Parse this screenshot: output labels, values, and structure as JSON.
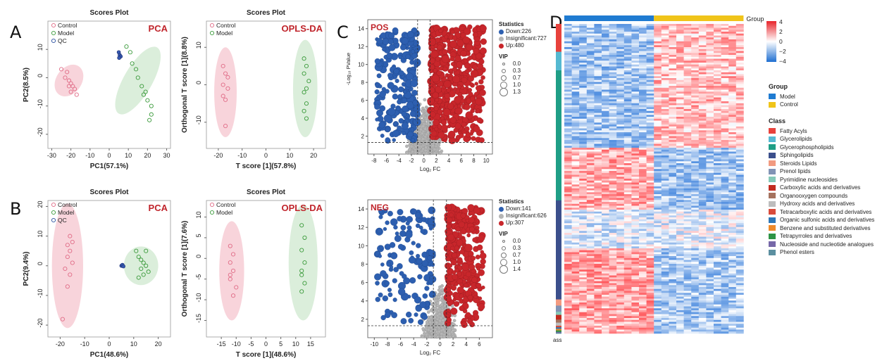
{
  "panel_letters": {
    "a": "A",
    "b": "B",
    "c": "C",
    "d": "D"
  },
  "chart_data": [
    {
      "id": "A_pca",
      "type": "scatter",
      "title": "Scores Plot",
      "tag": "PCA",
      "xlabel": "PC1(57.1%)",
      "ylabel": "PC2(8.5%)",
      "xlim": [
        -32,
        32
      ],
      "ylim": [
        -25,
        20
      ],
      "xticks": [
        -30,
        -20,
        -10,
        0,
        10,
        20,
        30
      ],
      "yticks": [
        -20,
        -10,
        0,
        10
      ],
      "legend": [
        "Control",
        "Model",
        "QC"
      ],
      "series": [
        {
          "name": "Control",
          "color": "#e06b86",
          "fill": "#f5c6cf",
          "points": [
            [
              -25,
              3
            ],
            [
              -22,
              2
            ],
            [
              -23,
              0
            ],
            [
              -21,
              -1
            ],
            [
              -20,
              -2
            ],
            [
              -19,
              -3
            ],
            [
              -18,
              -4
            ],
            [
              -21,
              -3
            ],
            [
              -20,
              -5
            ],
            [
              -17,
              -6
            ]
          ],
          "ellipse": {
            "cx": -21,
            "cy": -1,
            "rx": 9,
            "ry": 4.5,
            "rot": -55
          }
        },
        {
          "name": "Model",
          "color": "#3a9a3a",
          "fill": "#cfe8cf",
          "points": [
            [
              9,
              11
            ],
            [
              11,
              9
            ],
            [
              12,
              5
            ],
            [
              14,
              3
            ],
            [
              15,
              0
            ],
            [
              17,
              -3
            ],
            [
              19,
              -5
            ],
            [
              20,
              -8
            ],
            [
              22,
              -10
            ],
            [
              22,
              -13
            ],
            [
              18,
              -6
            ],
            [
              21,
              -15
            ]
          ],
          "ellipse": {
            "cx": 15,
            "cy": -1,
            "rx": 20,
            "ry": 5,
            "rot": -60
          }
        },
        {
          "name": "QC",
          "color": "#2a4fa0",
          "fill": "none",
          "points": [
            [
              5,
              9
            ],
            [
              5.5,
              8
            ],
            [
              6,
              7.5
            ],
            [
              5.2,
              7
            ]
          ]
        }
      ]
    },
    {
      "id": "A_oplsda",
      "type": "scatter",
      "title": "Scores Plot",
      "tag": "OPLS-DA",
      "xlabel": "T score [1](57.8%)",
      "ylabel": "Orthogonal T score [1](8.8%)",
      "xlim": [
        -25,
        25
      ],
      "ylim": [
        -17,
        17
      ],
      "xticks": [
        -20,
        -10,
        0,
        10,
        20
      ],
      "yticks": [
        -10,
        0,
        10
      ],
      "legend": [
        "Control",
        "Model"
      ],
      "series": [
        {
          "name": "Control",
          "color": "#e06b86",
          "fill": "#f5c6cf",
          "points": [
            [
              -18,
              5
            ],
            [
              -17,
              3
            ],
            [
              -18,
              0
            ],
            [
              -16,
              -1
            ],
            [
              -18,
              -3
            ],
            [
              -17,
              -4
            ],
            [
              -17,
              -11
            ],
            [
              -16,
              2
            ]
          ],
          "ellipse": {
            "cx": -17,
            "cy": -2,
            "rx": 2.5,
            "ry": 12,
            "rot": 0
          }
        },
        {
          "name": "Model",
          "color": "#3a9a3a",
          "fill": "#cfe8cf",
          "points": [
            [
              16,
              7
            ],
            [
              17,
              5
            ],
            [
              16,
              3
            ],
            [
              18,
              1
            ],
            [
              17,
              -1
            ],
            [
              16,
              -2
            ],
            [
              17,
              -5
            ],
            [
              16,
              -7
            ],
            [
              17,
              -9
            ]
          ],
          "ellipse": {
            "cx": 16.5,
            "cy": -1,
            "rx": 2.5,
            "ry": 13,
            "rot": 0
          }
        }
      ]
    },
    {
      "id": "B_pca",
      "type": "scatter",
      "title": "Scores Plot",
      "tag": "PCA",
      "xlabel": "PC1(48.6%)",
      "ylabel": "PC2(9.4%)",
      "xlim": [
        -25,
        25
      ],
      "ylim": [
        -24,
        22
      ],
      "xticks": [
        -20,
        -10,
        0,
        10,
        20
      ],
      "yticks": [
        -20,
        -10,
        0,
        10,
        20
      ],
      "legend": [
        "Control",
        "Model",
        "QC"
      ],
      "series": [
        {
          "name": "Control",
          "color": "#e06b86",
          "fill": "#f5c6cf",
          "points": [
            [
              -16,
              10
            ],
            [
              -15,
              8
            ],
            [
              -17,
              7
            ],
            [
              -16,
              5
            ],
            [
              -17,
              3
            ],
            [
              -15,
              1
            ],
            [
              -18,
              -1
            ],
            [
              -16,
              -3
            ],
            [
              -17,
              -7
            ],
            [
              -19,
              -18
            ]
          ],
          "ellipse": {
            "cx": -17,
            "cy": 0,
            "rx": 4,
            "ry": 21,
            "rot": 0
          }
        },
        {
          "name": "Model",
          "color": "#3a9a3a",
          "fill": "#cfe8cf",
          "points": [
            [
              11,
              5
            ],
            [
              12,
              3
            ],
            [
              13,
              2
            ],
            [
              14,
              1
            ],
            [
              15,
              0
            ],
            [
              16,
              -2
            ],
            [
              14,
              -3
            ],
            [
              13,
              -1
            ],
            [
              15,
              5
            ],
            [
              12,
              -4
            ]
          ],
          "ellipse": {
            "cx": 13,
            "cy": 0,
            "rx": 7,
            "ry": 6.5,
            "rot": 0
          }
        },
        {
          "name": "QC",
          "color": "#2a4fa0",
          "fill": "none",
          "points": [
            [
              5,
              0
            ],
            [
              5.4,
              0.3
            ],
            [
              5.8,
              -0.2
            ]
          ]
        }
      ]
    },
    {
      "id": "B_oplsda",
      "type": "scatter",
      "title": "Scores Plot",
      "tag": "OPLS-DA",
      "xlabel": "T score [1](48.6%)",
      "ylabel": "Orthogonal T score [1](7.6%)",
      "xlim": [
        -20,
        20
      ],
      "ylim": [
        -19,
        14
      ],
      "xticks": [
        -15,
        -10,
        -5,
        0,
        5,
        10,
        15
      ],
      "yticks": [
        -15,
        -10,
        -5,
        0,
        5,
        10
      ],
      "legend": [
        "Control",
        "Model"
      ],
      "series": [
        {
          "name": "Control",
          "color": "#e06b86",
          "fill": "#f5c6cf",
          "points": [
            [
              -12,
              3
            ],
            [
              -11,
              1
            ],
            [
              -12,
              -1
            ],
            [
              -11,
              -3
            ],
            [
              -12,
              -5
            ],
            [
              -10,
              -7
            ],
            [
              -11,
              -9
            ],
            [
              -12,
              -4
            ]
          ],
          "ellipse": {
            "cx": -11.5,
            "cy": -3,
            "rx": 2,
            "ry": 12,
            "rot": 0
          }
        },
        {
          "name": "Model",
          "color": "#3a9a3a",
          "fill": "#cfe8cf",
          "points": [
            [
              12,
              8
            ],
            [
              13,
              5
            ],
            [
              12,
              2
            ],
            [
              13,
              -1
            ],
            [
              12,
              -3
            ],
            [
              13,
              -6
            ],
            [
              12,
              -8
            ],
            [
              12,
              -4
            ]
          ],
          "ellipse": {
            "cx": 12.5,
            "cy": -1,
            "rx": 2,
            "ry": 14,
            "rot": 0
          }
        }
      ]
    },
    {
      "id": "C_pos",
      "type": "scatter",
      "subtype": "volcano",
      "tag": "POS",
      "xlabel": "Log₂ FC",
      "ylabel": "-Log₁₀ PValue",
      "xlim": [
        -9,
        11
      ],
      "ylim": [
        0,
        15
      ],
      "xticks": [
        -8,
        -6,
        -4,
        -2,
        0,
        2,
        4,
        6,
        8,
        10
      ],
      "yticks": [
        2,
        4,
        6,
        8,
        10,
        12,
        14
      ],
      "vlines": [
        -1,
        1
      ],
      "hline": 1.3,
      "stats": {
        "header": "Statistics",
        "down": "Down:226",
        "insig": "Insignificant:727",
        "up": "Up:480"
      },
      "vip": {
        "header": "VIP",
        "levels": [
          "0.0",
          "0.3",
          "0.7",
          "1.0",
          "1.3"
        ]
      },
      "counts": {
        "down": 226,
        "insig": 727,
        "up": 480
      }
    },
    {
      "id": "C_neg",
      "type": "scatter",
      "subtype": "volcano",
      "tag": "NEG",
      "xlabel": "Log₂ FC",
      "ylabel": "",
      "xlim": [
        -11,
        8
      ],
      "ylim": [
        0,
        15
      ],
      "xticks": [
        -10,
        -8,
        -6,
        -4,
        -2,
        0,
        2,
        4,
        6
      ],
      "yticks": [
        2,
        4,
        6,
        8,
        10,
        12,
        14
      ],
      "vlines": [
        -1,
        1
      ],
      "hline": 1.3,
      "stats": {
        "header": "Statistics",
        "down": "Down:141",
        "insig": "Insignificant:626",
        "up": "Up:307"
      },
      "vip": {
        "header": "VIP",
        "levels": [
          "0.0",
          "0.3",
          "0.7",
          "1.0",
          "1.4"
        ]
      },
      "counts": {
        "down": 141,
        "insig": 626,
        "up": 307
      }
    },
    {
      "id": "D_heatmap",
      "type": "heatmap",
      "colorbar": {
        "ticks": [
          "4",
          "2",
          "0",
          "−2",
          "−4"
        ],
        "colors": [
          "#e8242b",
          "#ffffff",
          "#1f6fd1"
        ]
      },
      "group_label": "Group",
      "group_legend": {
        "title": "Group",
        "items": [
          {
            "name": "Model",
            "color": "#1f7bd1"
          },
          {
            "name": "Control",
            "color": "#f0c419"
          }
        ]
      },
      "class_legend": {
        "title": "Class",
        "items": [
          {
            "name": "Fatty Acyls",
            "color": "#e8423c"
          },
          {
            "name": "Glycerolipids",
            "color": "#55b9d1"
          },
          {
            "name": "Glycerophospholipids",
            "color": "#1f9e86"
          },
          {
            "name": "Sphingolipids",
            "color": "#3b4f8c"
          },
          {
            "name": "Steroids Lipids",
            "color": "#f29a80"
          },
          {
            "name": "Prenol lipids",
            "color": "#8193b5"
          },
          {
            "name": "Pyrimidine nucleosides",
            "color": "#84c9b8"
          },
          {
            "name": "Carboxylic acids and derivatives",
            "color": "#c22b1f"
          },
          {
            "name": "Organooxygen compounds",
            "color": "#a5725e"
          },
          {
            "name": "Hydroxy acids and derivatives",
            "color": "#bdbdbd"
          },
          {
            "name": "Tetracarboxylic acids and derivatives",
            "color": "#d84b3b"
          },
          {
            "name": "Organic sulfonic acids and derivatives",
            "color": "#2e78b8"
          },
          {
            "name": "Benzene and substituted derivatives",
            "color": "#ef8a2a"
          },
          {
            "name": "Tetrapyrroles and derivatives",
            "color": "#2e9446"
          },
          {
            "name": "Nucleoside and nucleotide analogues",
            "color": "#7668a8"
          },
          {
            "name": "Phenol esters",
            "color": "#5b8fa0"
          }
        ]
      },
      "class_axis_label": "ass",
      "columns": {
        "model": 12,
        "control": 12
      },
      "rows": 160
    }
  ]
}
